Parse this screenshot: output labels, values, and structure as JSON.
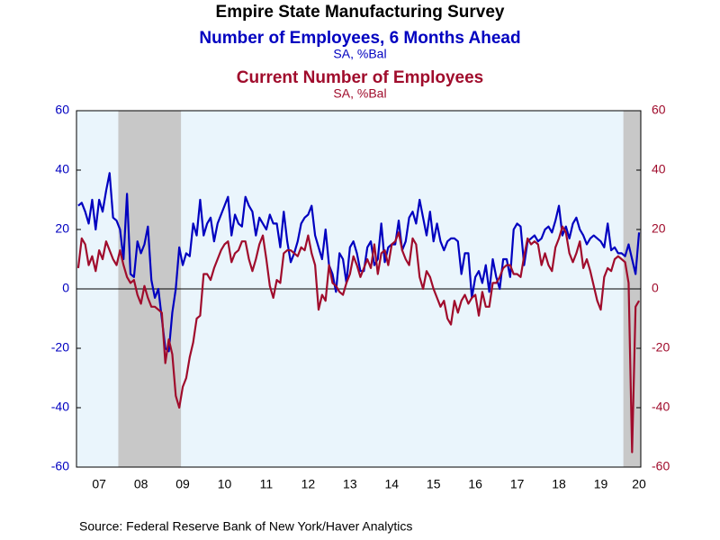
{
  "chart_data": {
    "type": "line",
    "title": "Empire State Manufacturing Survey",
    "subtitle_1": "Number of Employees, 6 Months Ahead",
    "subtitle_1_units": "SA, %Bal",
    "subtitle_2": "Current Number of Employees",
    "subtitle_2_units": "SA, %Bal",
    "source": "Source:  Federal Reserve Bank of New York/Haver Analytics",
    "categories": [
      null,
      null,
      null,
      null,
      null,
      null,
      "07",
      null,
      null,
      null,
      null,
      null,
      null,
      null,
      null,
      null,
      null,
      null,
      "08",
      null,
      null,
      null,
      null,
      null,
      null,
      null,
      null,
      null,
      null,
      null,
      "09",
      null,
      null,
      null,
      null,
      null,
      null,
      null,
      null,
      null,
      null,
      null,
      "10",
      null,
      null,
      null,
      null,
      null,
      null,
      null,
      null,
      null,
      null,
      null,
      "11",
      null,
      null,
      null,
      null,
      null,
      null,
      null,
      null,
      null,
      null,
      null,
      "12",
      null,
      null,
      null,
      null,
      null,
      null,
      null,
      null,
      null,
      null,
      null,
      "13",
      null,
      null,
      null,
      null,
      null,
      null,
      null,
      null,
      null,
      null,
      null,
      "14",
      null,
      null,
      null,
      null,
      null,
      null,
      null,
      null,
      null,
      null,
      null,
      "15",
      null,
      null,
      null,
      null,
      null,
      null,
      null,
      null,
      null,
      null,
      null,
      "16",
      null,
      null,
      null,
      null,
      null,
      null,
      null,
      null,
      null,
      null,
      null,
      "17",
      null,
      null,
      null,
      null,
      null,
      null,
      null,
      null,
      null,
      null,
      null,
      "18",
      null,
      null,
      null,
      null,
      null,
      null,
      null,
      null,
      null,
      null,
      null,
      "19",
      null,
      null,
      null,
      null,
      null,
      null,
      null,
      null,
      null,
      null,
      "20"
    ],
    "series": [
      {
        "name": "Number of Employees, 6 Months Ahead",
        "color": "#0000c0",
        "axis": "y",
        "values": [
          28,
          29,
          26,
          22,
          30,
          20,
          30,
          26,
          33,
          39,
          24,
          23,
          20,
          10,
          32,
          5,
          4,
          16,
          12,
          15,
          21,
          3,
          -3,
          0,
          -10,
          -20,
          -21,
          -8,
          0,
          14,
          8,
          12,
          11,
          22,
          18,
          30,
          18,
          22,
          24,
          16,
          22,
          25,
          28,
          31,
          18,
          25,
          22,
          21,
          31,
          28,
          26,
          18,
          24,
          22,
          20,
          25,
          22,
          22,
          14,
          26,
          16,
          9,
          12,
          16,
          22,
          24,
          25,
          28,
          18,
          14,
          10,
          20,
          8,
          5,
          -1,
          12,
          10,
          2,
          14,
          16,
          12,
          6,
          6,
          14,
          16,
          8,
          10,
          22,
          9,
          14,
          15,
          15,
          23,
          13,
          16,
          24,
          26,
          22,
          30,
          24,
          18,
          26,
          16,
          22,
          16,
          13,
          16,
          17,
          17,
          16,
          5,
          12,
          12,
          -3,
          4,
          6,
          2,
          8,
          -1,
          10,
          4,
          0,
          10,
          10,
          4,
          20,
          22,
          21,
          8,
          16,
          17,
          18,
          16,
          17,
          20,
          21,
          19,
          23,
          28,
          18,
          21,
          17,
          22,
          24,
          20,
          18,
          15,
          17,
          18,
          17,
          16,
          14,
          22,
          13,
          14,
          12,
          12,
          11,
          15,
          10,
          5,
          19
        ]
      },
      {
        "name": "Current Number of Employees",
        "color": "#a00c2c",
        "axis": "y2",
        "values": [
          7,
          17,
          15,
          8,
          11,
          6,
          13,
          10,
          16,
          13,
          10,
          8,
          13,
          8,
          4,
          2,
          3,
          -2,
          -5,
          1,
          -3,
          -6,
          -6,
          -7,
          -8,
          -25,
          -17,
          -22,
          -36,
          -40,
          -33,
          -30,
          -23,
          -18,
          -10,
          -9,
          5,
          5,
          3,
          7,
          10,
          13,
          15,
          16,
          9,
          12,
          13,
          16,
          16,
          10,
          6,
          10,
          15,
          18,
          10,
          1,
          -3,
          3,
          2,
          12,
          13,
          13,
          12,
          11,
          14,
          13,
          18,
          12,
          8,
          -7,
          -2,
          -4,
          8,
          2,
          1,
          -1,
          -2,
          2,
          5,
          11,
          8,
          4,
          7,
          10,
          7,
          15,
          5,
          12,
          13,
          8,
          15,
          16,
          19,
          13,
          10,
          8,
          17,
          15,
          4,
          0,
          6,
          4,
          0,
          -3,
          -6,
          -4,
          -10,
          -12,
          -4,
          -8,
          -4,
          -2,
          -5,
          -3,
          -2,
          -9,
          -1,
          -6,
          -6,
          2,
          2,
          4,
          7,
          8,
          8,
          5,
          5,
          4,
          11,
          17,
          15,
          16,
          15,
          8,
          12,
          8,
          6,
          14,
          17,
          21,
          19,
          12,
          9,
          12,
          16,
          7,
          10,
          6,
          1,
          -4,
          -7,
          4,
          7,
          6,
          10,
          11,
          10,
          9,
          2,
          -55,
          -6,
          -4
        ]
      }
    ],
    "shading": [
      [
        12,
        30
      ],
      [
        157,
        162
      ]
    ],
    "ylim": [
      -60,
      60
    ],
    "yticks": [
      -60,
      -40,
      -20,
      0,
      20,
      40,
      60
    ],
    "y2lim": [
      -60,
      60
    ],
    "y2ticks": [
      -60,
      -40,
      -20,
      0,
      20,
      40,
      60
    ]
  }
}
